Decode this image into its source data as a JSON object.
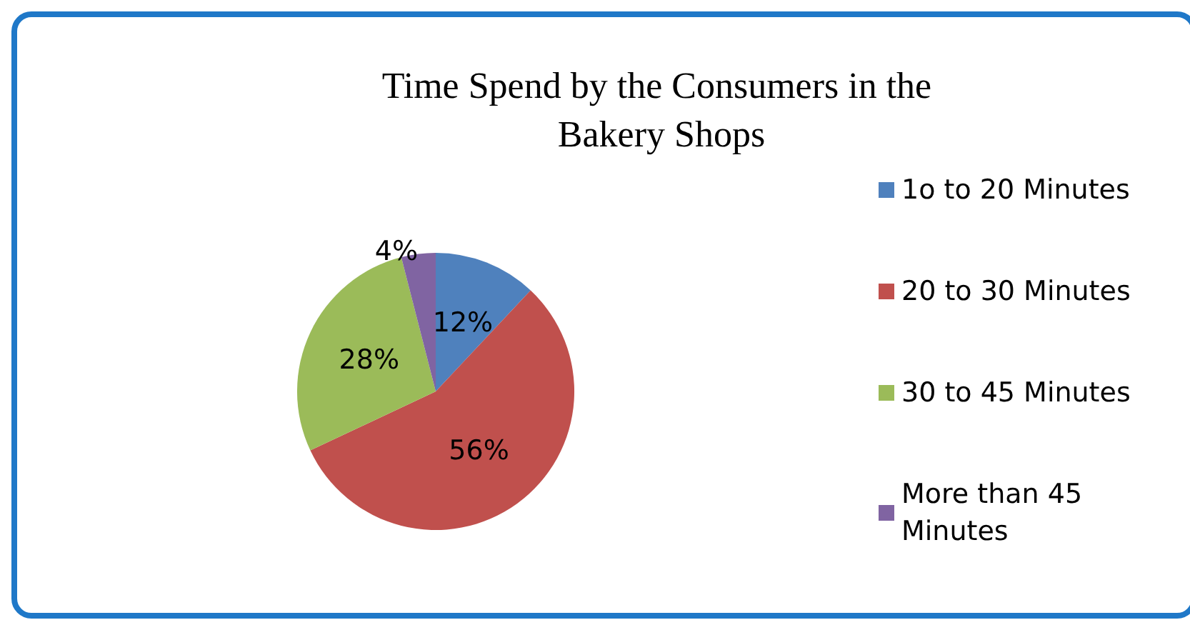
{
  "chart_data": {
    "type": "pie",
    "title": "Time Spend by the Consumers in the Bakery Shops",
    "categories": [
      "1o to 20 Minutes",
      "20 to 30 Minutes",
      "30 to 45 Minutes",
      "More than 45 Minutes"
    ],
    "values": [
      12,
      56,
      28,
      4
    ],
    "colors": [
      "#4f81bd",
      "#c0504d",
      "#9bbb59",
      "#8064a2"
    ],
    "value_labels": [
      "12%",
      "56%",
      "28%",
      "4%"
    ],
    "legend": "right"
  }
}
